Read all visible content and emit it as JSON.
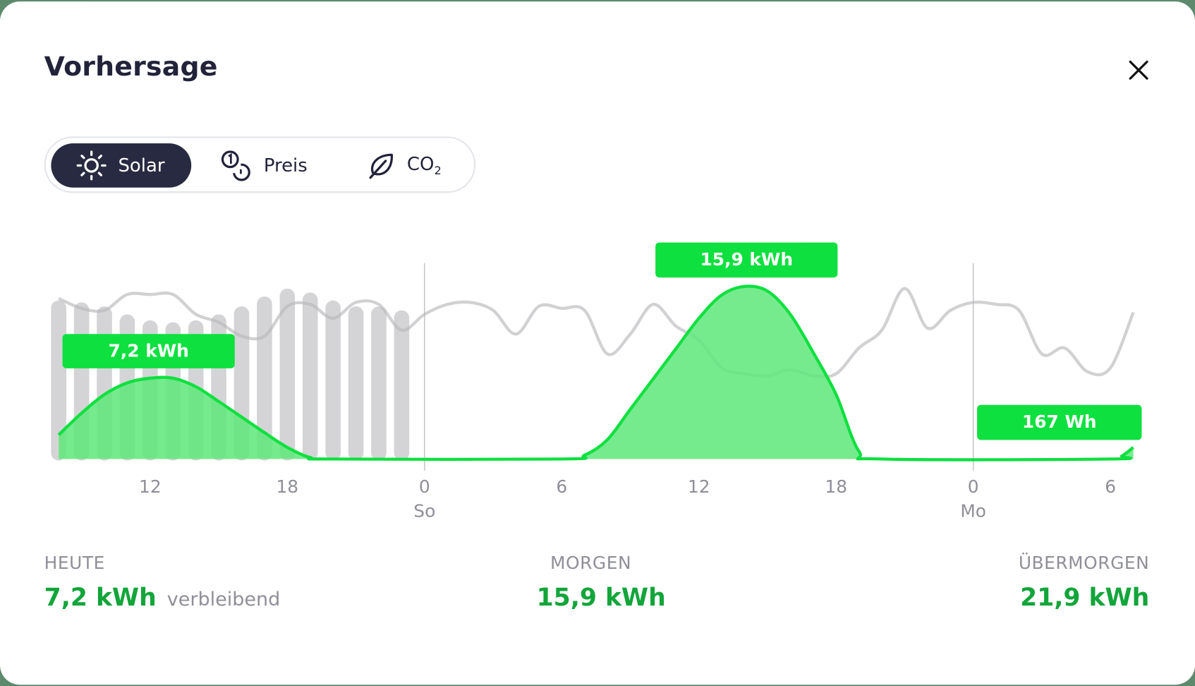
{
  "dialog": {
    "title": "Vorhersage",
    "close_icon": "close-icon"
  },
  "tabs": [
    {
      "label": "Solar",
      "icon": "sun-icon",
      "active": true
    },
    {
      "label": "Preis",
      "icon": "coins-icon",
      "active": false
    },
    {
      "label": "CO",
      "sub": "2",
      "icon": "leaf-icon",
      "active": false
    }
  ],
  "colors": {
    "accent": "#0ee03f",
    "accent_text": "#12a53a",
    "fill": "#5ee87a",
    "reference": "#cfcfd1",
    "dark": "#272a40"
  },
  "chart_data": {
    "type": "area",
    "x_ticks": [
      {
        "time": "Sa 12:00",
        "label": "12"
      },
      {
        "time": "Sa 18:00",
        "label": "18"
      },
      {
        "time": "So 00:00",
        "label": "0",
        "day": "So"
      },
      {
        "time": "So 06:00",
        "label": "6"
      },
      {
        "time": "So 12:00",
        "label": "12"
      },
      {
        "time": "So 18:00",
        "label": "18"
      },
      {
        "time": "Mo 00:00",
        "label": "0",
        "day": "Mo"
      },
      {
        "time": "Mo 06:00",
        "label": "6"
      }
    ],
    "x_range": [
      "Sa 08:00",
      "Mo 07:00"
    ],
    "y_unit": "kW",
    "ylim": [
      0,
      2.55
    ],
    "day_dividers": [
      "So 00:00",
      "Mo 00:00"
    ],
    "solar_forecast": [
      [
        "Sa 08:00",
        0.31
      ],
      [
        "Sa 09:00",
        0.59
      ],
      [
        "Sa 10:00",
        0.83
      ],
      [
        "Sa 11:00",
        0.98
      ],
      [
        "Sa 12:00",
        1.04
      ],
      [
        "Sa 13:00",
        1.04
      ],
      [
        "Sa 14:00",
        0.93
      ],
      [
        "Sa 15:00",
        0.74
      ],
      [
        "Sa 16:00",
        0.54
      ],
      [
        "Sa 17:00",
        0.34
      ],
      [
        "Sa 18:00",
        0.15
      ],
      [
        "Sa 19:00",
        0.02
      ],
      [
        "Sa 20:00",
        0
      ],
      [
        "So 06:00",
        0
      ],
      [
        "So 07:00",
        0.05
      ],
      [
        "So 08:00",
        0.25
      ],
      [
        "So 09:00",
        0.64
      ],
      [
        "So 10:00",
        1.03
      ],
      [
        "So 11:00",
        1.42
      ],
      [
        "So 12:00",
        1.81
      ],
      [
        "So 13:00",
        2.11
      ],
      [
        "So 14:00",
        2.22
      ],
      [
        "So 15:00",
        2.16
      ],
      [
        "So 16:00",
        1.86
      ],
      [
        "So 17:00",
        1.37
      ],
      [
        "So 18:00",
        0.83
      ],
      [
        "So 19:00",
        0.1
      ],
      [
        "So 20:00",
        0
      ],
      [
        "Mo 06:00",
        0
      ],
      [
        "Mo 06:30",
        0.04
      ],
      [
        "Mo 07:00",
        0.15
      ]
    ],
    "reference_bars": [
      [
        "Sa 08:00",
        80
      ],
      [
        "Sa 09:00",
        79
      ],
      [
        "Sa 10:00",
        77
      ],
      [
        "Sa 11:00",
        73
      ],
      [
        "Sa 12:00",
        70
      ],
      [
        "Sa 13:00",
        69
      ],
      [
        "Sa 14:00",
        70
      ],
      [
        "Sa 15:00",
        73
      ],
      [
        "Sa 16:00",
        77
      ],
      [
        "Sa 17:00",
        82
      ],
      [
        "Sa 18:00",
        86
      ],
      [
        "Sa 19:00",
        84
      ],
      [
        "Sa 20:00",
        80
      ],
      [
        "Sa 21:00",
        77
      ],
      [
        "Sa 22:00",
        77
      ],
      [
        "Sa 23:00",
        75
      ]
    ],
    "reference_line": [
      [
        "Sa 08:00",
        81
      ],
      [
        "Sa 09:00",
        76
      ],
      [
        "Sa 10:00",
        75
      ],
      [
        "Sa 11:00",
        83
      ],
      [
        "Sa 12:00",
        83
      ],
      [
        "Sa 13:00",
        83
      ],
      [
        "Sa 14:00",
        73
      ],
      [
        "Sa 15:00",
        69
      ],
      [
        "Sa 16:00",
        62
      ],
      [
        "Sa 17:00",
        62
      ],
      [
        "Sa 18:00",
        77
      ],
      [
        "Sa 19:00",
        78
      ],
      [
        "Sa 20:00",
        71
      ],
      [
        "Sa 21:00",
        79
      ],
      [
        "Sa 22:00",
        78
      ],
      [
        "Sa 23:00",
        65
      ],
      [
        "So 00:00",
        73
      ],
      [
        "So 01:00",
        78
      ],
      [
        "So 02:00",
        79
      ],
      [
        "So 03:00",
        75
      ],
      [
        "So 04:00",
        63
      ],
      [
        "So 05:00",
        77
      ],
      [
        "So 06:00",
        76
      ],
      [
        "So 07:00",
        75
      ],
      [
        "So 08:00",
        53
      ],
      [
        "So 09:00",
        63
      ],
      [
        "So 10:00",
        78
      ],
      [
        "So 11:00",
        67
      ],
      [
        "So 12:00",
        60
      ],
      [
        "So 13:00",
        46
      ],
      [
        "So 14:00",
        43
      ],
      [
        "So 15:00",
        42
      ],
      [
        "So 16:00",
        45
      ],
      [
        "So 17:00",
        42
      ],
      [
        "So 18:00",
        43
      ],
      [
        "So 19:00",
        56
      ],
      [
        "So 20:00",
        65
      ],
      [
        "So 21:00",
        86
      ],
      [
        "So 22:00",
        66
      ],
      [
        "So 23:00",
        75
      ],
      [
        "Mo 00:00",
        79
      ],
      [
        "Mo 01:00",
        78
      ],
      [
        "Mo 02:00",
        75
      ],
      [
        "Mo 03:00",
        53
      ],
      [
        "Mo 04:00",
        56
      ],
      [
        "Mo 05:00",
        44
      ],
      [
        "Mo 06:00",
        46
      ],
      [
        "Mo 07:00",
        74
      ]
    ],
    "annotations": [
      {
        "text": "7,2 kWh"
      },
      {
        "text": "15,9 kWh"
      },
      {
        "text": "167 Wh"
      }
    ]
  },
  "summary": [
    {
      "label": "HEUTE",
      "value": "7,2 kWh",
      "suffix": "verbleibend"
    },
    {
      "label": "MORGEN",
      "value": "15,9 kWh"
    },
    {
      "label": "ÜBERMORGEN",
      "value": "21,9 kWh"
    }
  ]
}
